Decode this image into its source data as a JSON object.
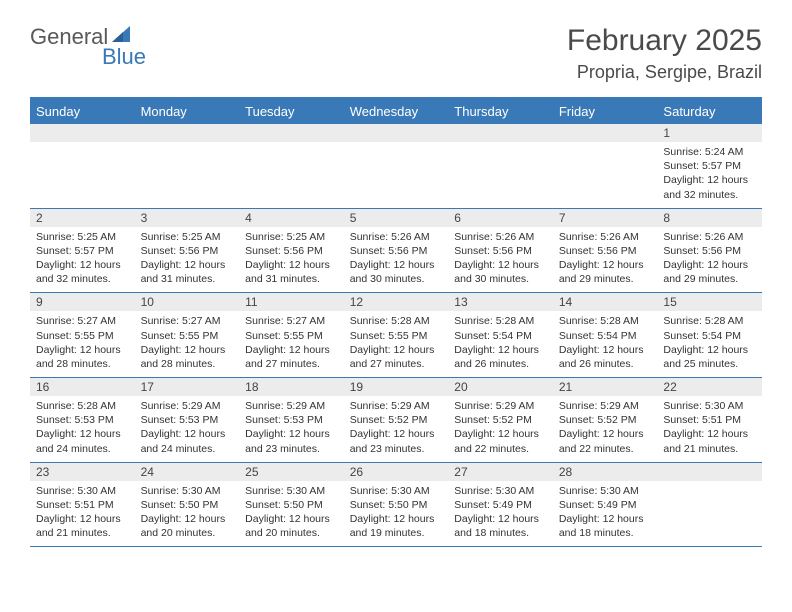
{
  "logo": {
    "text1": "General",
    "text2": "Blue"
  },
  "title": "February 2025",
  "location": "Propria, Sergipe, Brazil",
  "day_labels": [
    "Sunday",
    "Monday",
    "Tuesday",
    "Wednesday",
    "Thursday",
    "Friday",
    "Saturday"
  ],
  "colors": {
    "primary": "#3a79b7",
    "header_text": "#4a4a4a",
    "daynum_bg": "#ececec",
    "body_text": "#333333"
  },
  "weeks": [
    [
      {
        "day": "",
        "lines": []
      },
      {
        "day": "",
        "lines": []
      },
      {
        "day": "",
        "lines": []
      },
      {
        "day": "",
        "lines": []
      },
      {
        "day": "",
        "lines": []
      },
      {
        "day": "",
        "lines": []
      },
      {
        "day": "1",
        "lines": [
          "Sunrise: 5:24 AM",
          "Sunset: 5:57 PM",
          "Daylight: 12 hours and 32 minutes."
        ]
      }
    ],
    [
      {
        "day": "2",
        "lines": [
          "Sunrise: 5:25 AM",
          "Sunset: 5:57 PM",
          "Daylight: 12 hours and 32 minutes."
        ]
      },
      {
        "day": "3",
        "lines": [
          "Sunrise: 5:25 AM",
          "Sunset: 5:56 PM",
          "Daylight: 12 hours and 31 minutes."
        ]
      },
      {
        "day": "4",
        "lines": [
          "Sunrise: 5:25 AM",
          "Sunset: 5:56 PM",
          "Daylight: 12 hours and 31 minutes."
        ]
      },
      {
        "day": "5",
        "lines": [
          "Sunrise: 5:26 AM",
          "Sunset: 5:56 PM",
          "Daylight: 12 hours and 30 minutes."
        ]
      },
      {
        "day": "6",
        "lines": [
          "Sunrise: 5:26 AM",
          "Sunset: 5:56 PM",
          "Daylight: 12 hours and 30 minutes."
        ]
      },
      {
        "day": "7",
        "lines": [
          "Sunrise: 5:26 AM",
          "Sunset: 5:56 PM",
          "Daylight: 12 hours and 29 minutes."
        ]
      },
      {
        "day": "8",
        "lines": [
          "Sunrise: 5:26 AM",
          "Sunset: 5:56 PM",
          "Daylight: 12 hours and 29 minutes."
        ]
      }
    ],
    [
      {
        "day": "9",
        "lines": [
          "Sunrise: 5:27 AM",
          "Sunset: 5:55 PM",
          "Daylight: 12 hours and 28 minutes."
        ]
      },
      {
        "day": "10",
        "lines": [
          "Sunrise: 5:27 AM",
          "Sunset: 5:55 PM",
          "Daylight: 12 hours and 28 minutes."
        ]
      },
      {
        "day": "11",
        "lines": [
          "Sunrise: 5:27 AM",
          "Sunset: 5:55 PM",
          "Daylight: 12 hours and 27 minutes."
        ]
      },
      {
        "day": "12",
        "lines": [
          "Sunrise: 5:28 AM",
          "Sunset: 5:55 PM",
          "Daylight: 12 hours and 27 minutes."
        ]
      },
      {
        "day": "13",
        "lines": [
          "Sunrise: 5:28 AM",
          "Sunset: 5:54 PM",
          "Daylight: 12 hours and 26 minutes."
        ]
      },
      {
        "day": "14",
        "lines": [
          "Sunrise: 5:28 AM",
          "Sunset: 5:54 PM",
          "Daylight: 12 hours and 26 minutes."
        ]
      },
      {
        "day": "15",
        "lines": [
          "Sunrise: 5:28 AM",
          "Sunset: 5:54 PM",
          "Daylight: 12 hours and 25 minutes."
        ]
      }
    ],
    [
      {
        "day": "16",
        "lines": [
          "Sunrise: 5:28 AM",
          "Sunset: 5:53 PM",
          "Daylight: 12 hours and 24 minutes."
        ]
      },
      {
        "day": "17",
        "lines": [
          "Sunrise: 5:29 AM",
          "Sunset: 5:53 PM",
          "Daylight: 12 hours and 24 minutes."
        ]
      },
      {
        "day": "18",
        "lines": [
          "Sunrise: 5:29 AM",
          "Sunset: 5:53 PM",
          "Daylight: 12 hours and 23 minutes."
        ]
      },
      {
        "day": "19",
        "lines": [
          "Sunrise: 5:29 AM",
          "Sunset: 5:52 PM",
          "Daylight: 12 hours and 23 minutes."
        ]
      },
      {
        "day": "20",
        "lines": [
          "Sunrise: 5:29 AM",
          "Sunset: 5:52 PM",
          "Daylight: 12 hours and 22 minutes."
        ]
      },
      {
        "day": "21",
        "lines": [
          "Sunrise: 5:29 AM",
          "Sunset: 5:52 PM",
          "Daylight: 12 hours and 22 minutes."
        ]
      },
      {
        "day": "22",
        "lines": [
          "Sunrise: 5:30 AM",
          "Sunset: 5:51 PM",
          "Daylight: 12 hours and 21 minutes."
        ]
      }
    ],
    [
      {
        "day": "23",
        "lines": [
          "Sunrise: 5:30 AM",
          "Sunset: 5:51 PM",
          "Daylight: 12 hours and 21 minutes."
        ]
      },
      {
        "day": "24",
        "lines": [
          "Sunrise: 5:30 AM",
          "Sunset: 5:50 PM",
          "Daylight: 12 hours and 20 minutes."
        ]
      },
      {
        "day": "25",
        "lines": [
          "Sunrise: 5:30 AM",
          "Sunset: 5:50 PM",
          "Daylight: 12 hours and 20 minutes."
        ]
      },
      {
        "day": "26",
        "lines": [
          "Sunrise: 5:30 AM",
          "Sunset: 5:50 PM",
          "Daylight: 12 hours and 19 minutes."
        ]
      },
      {
        "day": "27",
        "lines": [
          "Sunrise: 5:30 AM",
          "Sunset: 5:49 PM",
          "Daylight: 12 hours and 18 minutes."
        ]
      },
      {
        "day": "28",
        "lines": [
          "Sunrise: 5:30 AM",
          "Sunset: 5:49 PM",
          "Daylight: 12 hours and 18 minutes."
        ]
      },
      {
        "day": "",
        "lines": []
      }
    ]
  ]
}
